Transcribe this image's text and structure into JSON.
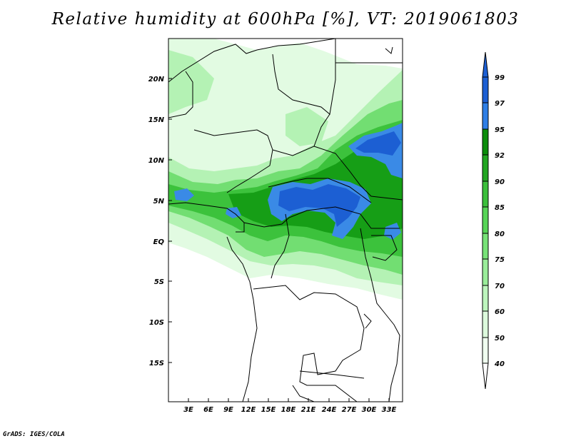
{
  "title": "Relative humidity at 600hPa [%], VT: 2019061803",
  "credit": "GrADS: IGES/COLA",
  "map": {
    "lat_labels": [
      "20N",
      "15N",
      "10N",
      "5N",
      "EQ",
      "5S",
      "10S",
      "15S"
    ],
    "lon_labels": [
      "3E",
      "6E",
      "9E",
      "12E",
      "15E",
      "18E",
      "21E",
      "24E",
      "27E",
      "30E",
      "33E"
    ]
  },
  "legend": {
    "labels": [
      "99",
      "97",
      "95",
      "92",
      "90",
      "85",
      "80",
      "75",
      "70",
      "60",
      "50",
      "40"
    ],
    "colors": [
      "#1c5fd3",
      "#2e7ee6",
      "#3a94ec",
      "#0b8d0b",
      "#22a622",
      "#3bbf3b",
      "#57d457",
      "#77e277",
      "#9aed9a",
      "#bdf5bd",
      "#dcfadc",
      "#f0fff0"
    ]
  },
  "colors": {
    "blue_dark": "#1c5fd3",
    "blue": "#3a8ae6",
    "green_dark": "#169e16",
    "green": "#3cc23c",
    "green_mid": "#72de72",
    "green_light": "#b4f2b4",
    "green_pale": "#e2fbe2"
  }
}
